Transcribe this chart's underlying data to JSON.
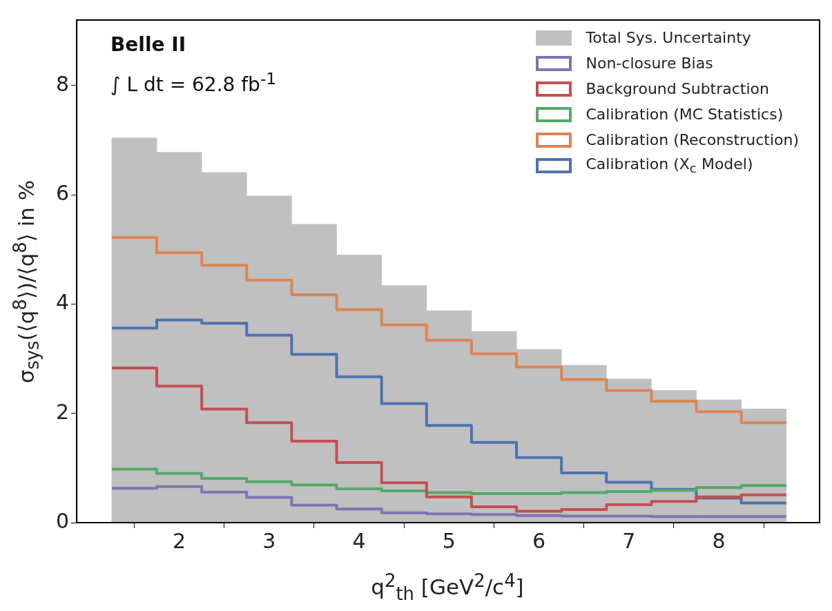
{
  "chart_data": {
    "type": "histogram",
    "xlabel": "q$^{2}$$_{th}$ [GeV$^{2}$/c$^{4}$]",
    "ylabel": "σ$_{sys}$(⟨q$^{8}$⟩)/⟨q$^{8}$⟩ in %",
    "annotations": [
      "Belle II",
      "∫ L dt = 62.8 fb$^{-1}$"
    ],
    "bins": [
      1.25,
      1.75,
      2.25,
      2.75,
      3.25,
      3.75,
      4.25,
      4.75,
      5.25,
      5.75,
      6.25,
      6.75,
      7.25,
      7.75,
      8.25,
      8.75
    ],
    "series": [
      {
        "name": "Total Sys. Uncertainty",
        "color": "#c0c0c0",
        "values": [
          7.04,
          6.78,
          6.41,
          5.98,
          5.46,
          4.9,
          4.34,
          3.88,
          3.5,
          3.17,
          2.88,
          2.63,
          2.42,
          2.25,
          2.08
        ]
      },
      {
        "name": "Non-closure Bias",
        "type": "step",
        "color": "#8172b2",
        "x": [
          1.25,
          1.75,
          2.25,
          2.75,
          3.25,
          3.75,
          4.25,
          4.75,
          5.25,
          5.75,
          6.25,
          6.75,
          7.25,
          7.75,
          8.25,
          8.75
        ],
        "values": [
          0.63,
          0.66,
          0.56,
          0.46,
          0.32,
          0.25,
          0.18,
          0.16,
          0.15,
          0.13,
          0.12,
          0.12,
          0.11,
          0.11,
          0.11,
          0.11
        ]
      },
      {
        "name": "Background Subtraction",
        "type": "step",
        "color": "#c44e52",
        "x": [
          1.25,
          1.75,
          2.25,
          2.75,
          3.25,
          3.75,
          4.25,
          4.75,
          5.25,
          5.75,
          6.25,
          6.75,
          7.25,
          7.75,
          8.25,
          8.75
        ],
        "values": [
          2.83,
          2.5,
          2.08,
          1.83,
          1.49,
          1.1,
          0.73,
          0.47,
          0.29,
          0.21,
          0.24,
          0.33,
          0.39,
          0.47,
          0.51,
          0.51
        ]
      },
      {
        "name": "Calibration (MC Statistics)",
        "type": "step",
        "color": "#55a868",
        "x": [
          1.25,
          1.75,
          2.25,
          2.75,
          3.25,
          3.75,
          4.25,
          4.75,
          5.25,
          5.75,
          6.25,
          6.75,
          7.25,
          7.75,
          8.25,
          8.75
        ],
        "values": [
          0.98,
          0.9,
          0.81,
          0.75,
          0.69,
          0.62,
          0.58,
          0.55,
          0.53,
          0.53,
          0.55,
          0.57,
          0.59,
          0.64,
          0.68,
          0.68
        ]
      },
      {
        "name": "Calibration (Reconstruction)",
        "type": "step",
        "color": "#dd8452",
        "x": [
          1.25,
          1.75,
          2.25,
          2.75,
          3.25,
          3.75,
          4.25,
          4.75,
          5.25,
          5.75,
          6.25,
          6.75,
          7.25,
          7.75,
          8.25,
          8.75
        ],
        "values": [
          5.22,
          4.94,
          4.71,
          4.44,
          4.17,
          3.9,
          3.62,
          3.34,
          3.09,
          2.85,
          2.62,
          2.42,
          2.22,
          2.03,
          1.83,
          1.83
        ]
      },
      {
        "name": "Calibration (X$_{c}$ Model)",
        "type": "step",
        "color": "#4c72b0",
        "x": [
          1.25,
          1.75,
          2.25,
          2.75,
          3.25,
          3.75,
          4.25,
          4.75,
          5.25,
          5.75,
          6.25,
          6.75,
          7.25,
          7.75,
          8.25,
          8.75
        ],
        "values": [
          3.56,
          3.71,
          3.65,
          3.43,
          3.08,
          2.67,
          2.18,
          1.78,
          1.47,
          1.19,
          0.91,
          0.74,
          0.61,
          0.45,
          0.36,
          0.36
        ]
      }
    ],
    "xlim": [
      0.86,
      9.12
    ],
    "ylim": [
      0,
      9.2
    ],
    "xticks": [
      2,
      3,
      4,
      5,
      6,
      7,
      8
    ],
    "yticks": [
      0,
      2,
      4,
      6,
      8
    ],
    "grid": false,
    "legend": "top right"
  }
}
